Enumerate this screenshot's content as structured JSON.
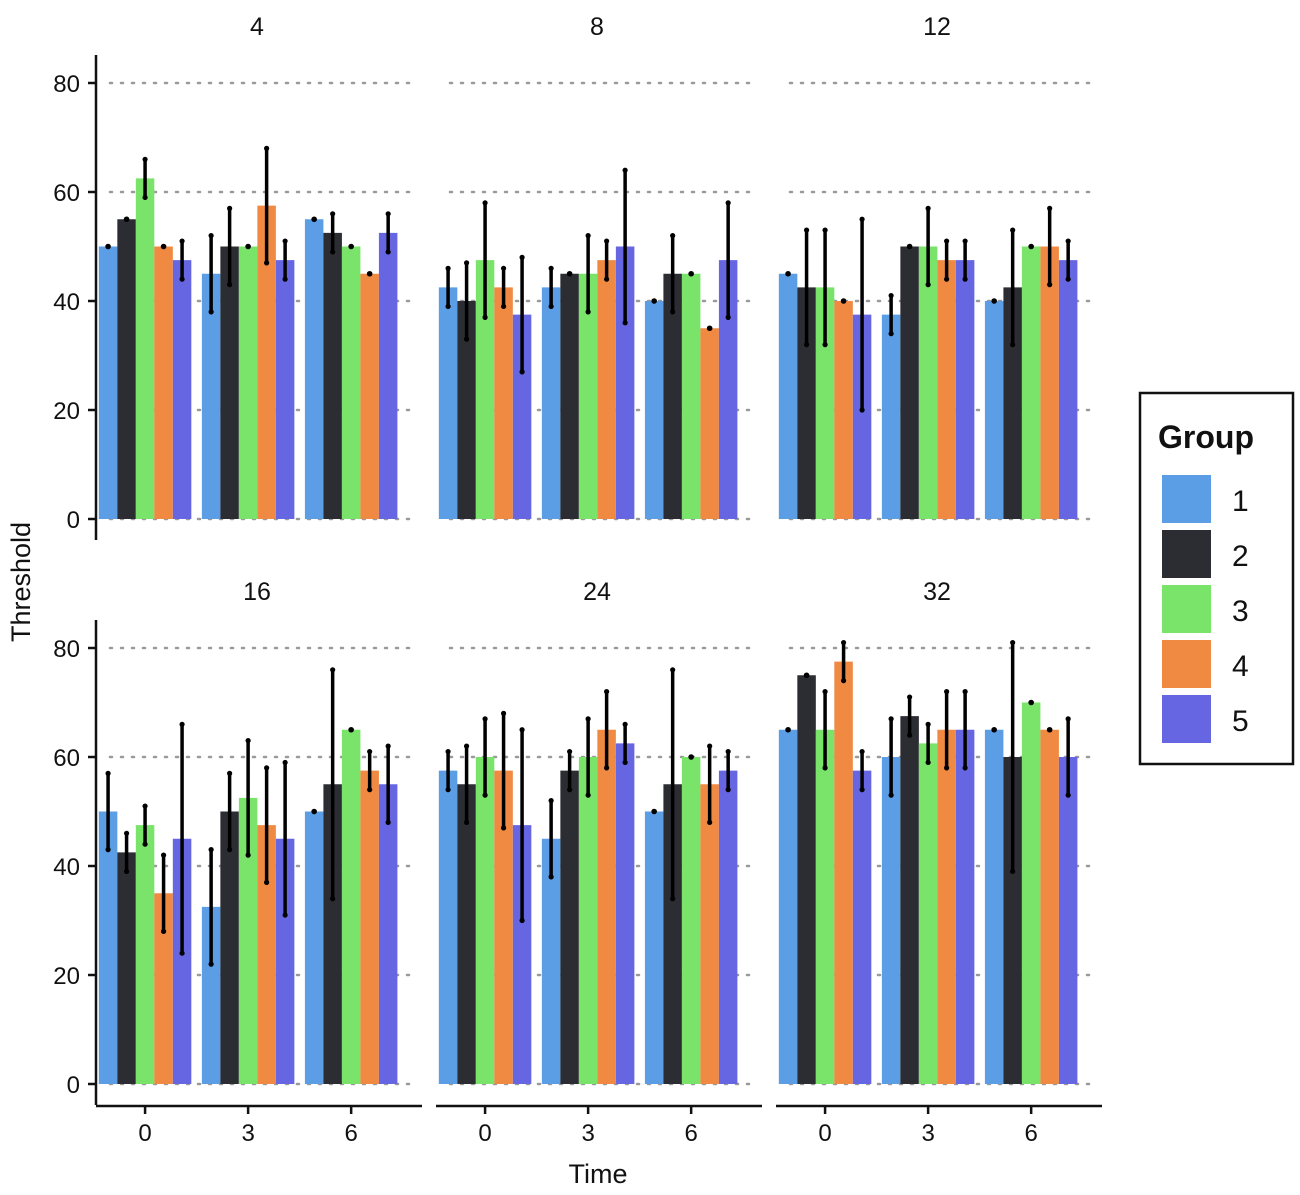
{
  "chart_data": {
    "type": "bar",
    "xlabel": "Time",
    "ylabel": "Threshold",
    "ylim": [
      0,
      85
    ],
    "y_ticks": [
      0,
      20,
      40,
      60,
      80
    ],
    "grid": "horizontal dotted",
    "legend": {
      "title": "Group",
      "placement": "right",
      "groups": [
        {
          "label": "1",
          "color": "#5b9ee6"
        },
        {
          "label": "2",
          "color": "#2c2d33"
        },
        {
          "label": "3",
          "color": "#79e36a"
        },
        {
          "label": "4",
          "color": "#f08a43"
        },
        {
          "label": "5",
          "color": "#6666e3"
        }
      ]
    },
    "categories": [
      "0",
      "3",
      "6"
    ],
    "facets": [
      {
        "title": "4",
        "bars": [
          {
            "values": [
              50,
              55,
              62.5,
              50,
              47.5
            ],
            "err_low": [
              50,
              55,
              59,
              50,
              44
            ],
            "err_high": [
              50,
              55,
              66,
              50,
              51
            ]
          },
          {
            "values": [
              45,
              50,
              50,
              57.5,
              47.5
            ],
            "err_low": [
              38,
              43,
              50,
              47,
              44
            ],
            "err_high": [
              52,
              57,
              50,
              68,
              51
            ]
          },
          {
            "values": [
              55,
              52.5,
              50,
              45,
              52.5
            ],
            "err_low": [
              55,
              49,
              50,
              45,
              49
            ],
            "err_high": [
              55,
              56,
              50,
              45,
              56
            ]
          }
        ]
      },
      {
        "title": "8",
        "bars": [
          {
            "values": [
              42.5,
              40,
              47.5,
              42.5,
              37.5
            ],
            "err_low": [
              39,
              33,
              37,
              39,
              27
            ],
            "err_high": [
              46,
              47,
              58,
              46,
              48
            ]
          },
          {
            "values": [
              42.5,
              45,
              45,
              47.5,
              50
            ],
            "err_low": [
              39,
              45,
              38,
              44,
              36
            ],
            "err_high": [
              46,
              45,
              52,
              51,
              64
            ]
          },
          {
            "values": [
              40,
              45,
              45,
              35,
              47.5
            ],
            "err_low": [
              40,
              38,
              45,
              35,
              37
            ],
            "err_high": [
              40,
              52,
              45,
              35,
              58
            ]
          }
        ]
      },
      {
        "title": "12",
        "bars": [
          {
            "values": [
              45,
              42.5,
              42.5,
              40,
              37.5
            ],
            "err_low": [
              45,
              32,
              32,
              40,
              20
            ],
            "err_high": [
              45,
              53,
              53,
              40,
              55
            ]
          },
          {
            "values": [
              37.5,
              50,
              50,
              47.5,
              47.5
            ],
            "err_low": [
              34,
              50,
              43,
              44,
              44
            ],
            "err_high": [
              41,
              50,
              57,
              51,
              51
            ]
          },
          {
            "values": [
              40,
              42.5,
              50,
              50,
              47.5
            ],
            "err_low": [
              40,
              32,
              50,
              43,
              44
            ],
            "err_high": [
              40,
              53,
              50,
              57,
              51
            ]
          }
        ]
      },
      {
        "title": "16",
        "bars": [
          {
            "values": [
              50,
              42.5,
              47.5,
              35,
              45
            ],
            "err_low": [
              43,
              39,
              44,
              28,
              24
            ],
            "err_high": [
              57,
              46,
              51,
              42,
              66
            ]
          },
          {
            "values": [
              32.5,
              50,
              52.5,
              47.5,
              45
            ],
            "err_low": [
              22,
              43,
              42,
              37,
              31
            ],
            "err_high": [
              43,
              57,
              63,
              58,
              59
            ]
          },
          {
            "values": [
              50,
              55,
              65,
              57.5,
              55
            ],
            "err_low": [
              50,
              34,
              65,
              54,
              48
            ],
            "err_high": [
              50,
              76,
              65,
              61,
              62
            ]
          }
        ]
      },
      {
        "title": "24",
        "bars": [
          {
            "values": [
              57.5,
              55,
              60,
              57.5,
              47.5
            ],
            "err_low": [
              54,
              48,
              53,
              47,
              30
            ],
            "err_high": [
              61,
              62,
              67,
              68,
              65
            ]
          },
          {
            "values": [
              45,
              57.5,
              60,
              65,
              62.5
            ],
            "err_low": [
              38,
              54,
              53,
              58,
              59
            ],
            "err_high": [
              52,
              61,
              67,
              72,
              66
            ]
          },
          {
            "values": [
              50,
              55,
              60,
              55,
              57.5
            ],
            "err_low": [
              50,
              34,
              60,
              48,
              54
            ],
            "err_high": [
              50,
              76,
              60,
              62,
              61
            ]
          }
        ]
      },
      {
        "title": "32",
        "bars": [
          {
            "values": [
              65,
              75,
              65,
              77.5,
              57.5
            ],
            "err_low": [
              65,
              75,
              58,
              74,
              54
            ],
            "err_high": [
              65,
              75,
              72,
              81,
              61
            ]
          },
          {
            "values": [
              60,
              67.5,
              62.5,
              65,
              65
            ],
            "err_low": [
              53,
              64,
              59,
              58,
              58
            ],
            "err_high": [
              67,
              71,
              66,
              72,
              72
            ]
          },
          {
            "values": [
              65,
              60,
              70,
              65,
              60
            ],
            "err_low": [
              65,
              39,
              70,
              65,
              53
            ],
            "err_high": [
              65,
              81,
              70,
              65,
              67
            ]
          }
        ]
      }
    ]
  }
}
